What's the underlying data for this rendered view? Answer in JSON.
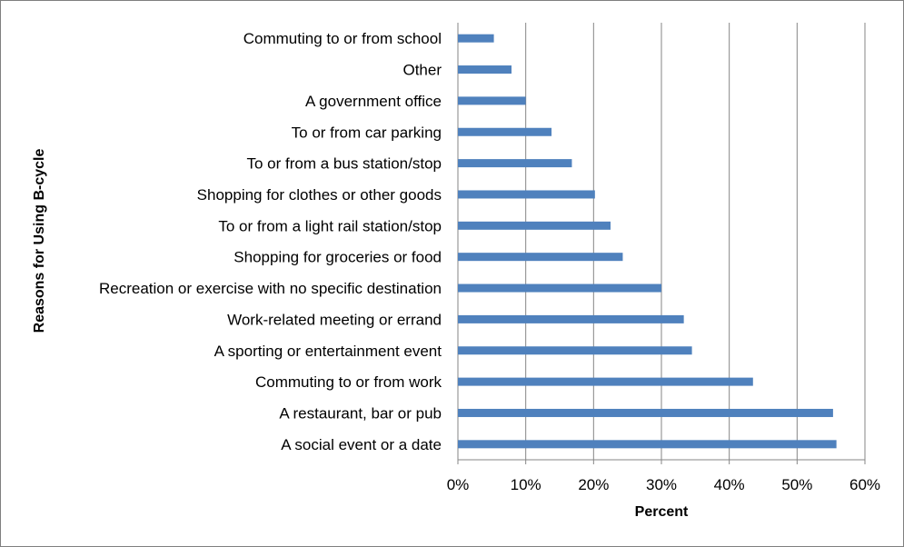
{
  "chart_data": {
    "type": "bar",
    "orientation": "horizontal",
    "title": "",
    "xlabel": "Percent",
    "ylabel": "Reasons for Using B-cycle",
    "xlim": [
      0,
      60
    ],
    "x_ticks": [
      "0%",
      "10%",
      "20%",
      "30%",
      "40%",
      "50%",
      "60%"
    ],
    "grid": "vertical",
    "bar_color": "#4f81bd",
    "categories": [
      "Commuting to or from school",
      "Other",
      "A government office",
      "To or from car parking",
      "To or from a bus station/stop",
      "Shopping for clothes or other goods",
      "To or from a light rail station/stop",
      "Shopping for groceries or food",
      "Recreation or exercise with no specific destination",
      "Work-related meeting or errand",
      "A sporting or entertainment event",
      "Commuting to or from work",
      "A restaurant, bar or pub",
      "A social event or a date"
    ],
    "values": [
      5.3,
      7.9,
      10.0,
      13.8,
      16.8,
      20.2,
      22.5,
      24.3,
      30.0,
      33.3,
      34.5,
      43.5,
      55.3,
      55.8
    ]
  }
}
